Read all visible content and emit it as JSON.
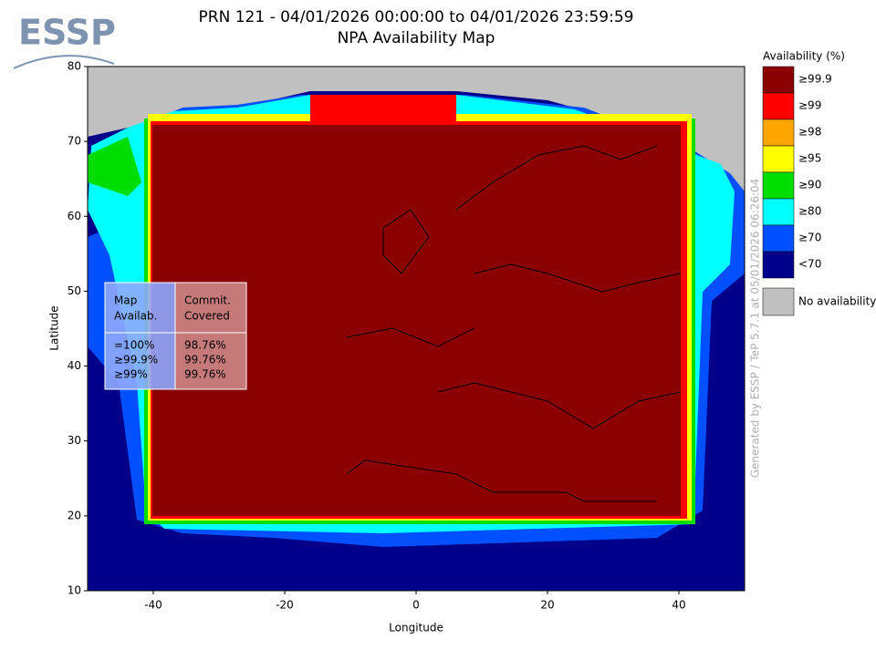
{
  "logo": "ESSP",
  "chart_data": {
    "type": "map",
    "title": "PRN 121 - 04/01/2026 00:00:00 to 04/01/2026 23:59:59",
    "subtitle": "NPA Availability Map",
    "x_label": "Longitude",
    "y_label": "Latitude",
    "xlim": [
      -50,
      50
    ],
    "ylim": [
      10,
      80
    ],
    "xticks": [
      -40,
      -20,
      0,
      20,
      40
    ],
    "yticks": [
      10,
      20,
      30,
      40,
      50,
      60,
      70,
      80
    ],
    "legend_title": "Availability (%)",
    "legend": [
      {
        "label": "≥99.9",
        "color": "#8b0000"
      },
      {
        "label": "≥99",
        "color": "#ff0000"
      },
      {
        "label": "≥98",
        "color": "#ffa500"
      },
      {
        "label": "≥95",
        "color": "#ffff00"
      },
      {
        "label": "≥90",
        "color": "#00dd00"
      },
      {
        "label": "≥80",
        "color": "#00ffff"
      },
      {
        "label": "≥70",
        "color": "#0050ff"
      },
      {
        "label": "<70",
        "color": "#00008b"
      }
    ],
    "no_availability": {
      "label": "No availability",
      "color": "#c0c0c0"
    },
    "watermark": "Generated by ESSP / TeP 5.7.1 at 05/01/2026 06:26:04"
  },
  "table": {
    "headers": [
      [
        "Map",
        "Availab."
      ],
      [
        "Commit.",
        "Covered"
      ]
    ],
    "rows": [
      [
        "=100%",
        "98.76%"
      ],
      [
        "≥99.9%",
        "99.76%"
      ],
      [
        "≥99%",
        "99.76%"
      ]
    ]
  }
}
